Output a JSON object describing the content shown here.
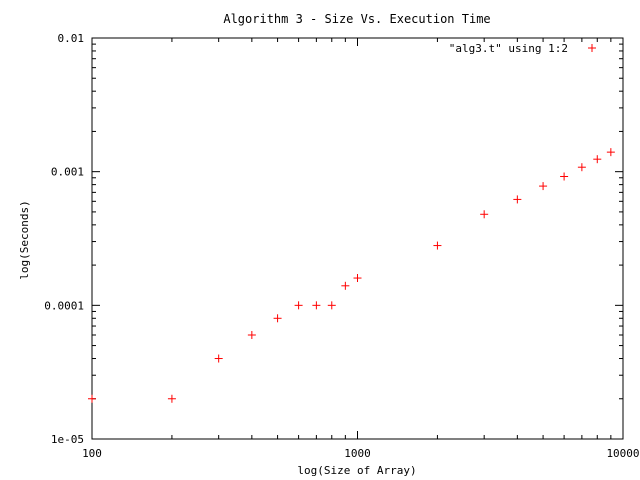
{
  "chart_data": {
    "type": "scatter",
    "title": "Algorithm 3 - Size Vs. Execution Time",
    "xlabel": "log(Size of Array)",
    "ylabel": "log(Seconds)",
    "xscale": "log",
    "yscale": "log",
    "xlim": [
      100,
      10000
    ],
    "ylim": [
      1e-05,
      0.01
    ],
    "x_ticks": [
      {
        "value": 100,
        "label": "100"
      },
      {
        "value": 1000,
        "label": "1000"
      },
      {
        "value": 10000,
        "label": "10000"
      }
    ],
    "y_ticks": [
      {
        "value": 1e-05,
        "label": "1e-05"
      },
      {
        "value": 0.0001,
        "label": "0.0001"
      },
      {
        "value": 0.001,
        "label": "0.001"
      },
      {
        "value": 0.01,
        "label": "0.01"
      }
    ],
    "grid": false,
    "legend_position": "top-right",
    "series": [
      {
        "name": "\"alg3.t\" using 1:2",
        "color": "#ff0000",
        "marker": "plus",
        "points": [
          {
            "x": 100,
            "y": 2e-05
          },
          {
            "x": 200,
            "y": 2e-05
          },
          {
            "x": 300,
            "y": 4e-05
          },
          {
            "x": 400,
            "y": 6e-05
          },
          {
            "x": 500,
            "y": 8e-05
          },
          {
            "x": 600,
            "y": 0.0001
          },
          {
            "x": 700,
            "y": 0.0001
          },
          {
            "x": 800,
            "y": 0.0001
          },
          {
            "x": 900,
            "y": 0.00014
          },
          {
            "x": 1000,
            "y": 0.00016
          },
          {
            "x": 2000,
            "y": 0.00028
          },
          {
            "x": 3000,
            "y": 0.00048
          },
          {
            "x": 4000,
            "y": 0.00062
          },
          {
            "x": 5000,
            "y": 0.00078
          },
          {
            "x": 6000,
            "y": 0.00092
          },
          {
            "x": 7000,
            "y": 0.00108
          },
          {
            "x": 8000,
            "y": 0.00124
          },
          {
            "x": 9000,
            "y": 0.0014
          }
        ]
      }
    ]
  }
}
